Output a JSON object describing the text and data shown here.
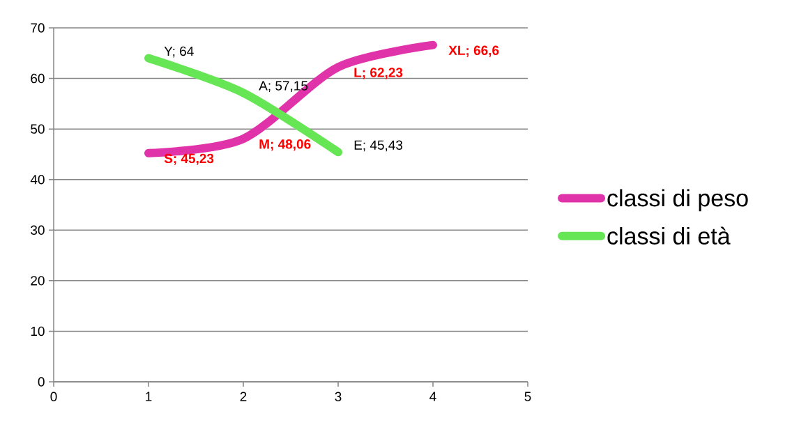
{
  "chart_data": {
    "type": "line",
    "x": [
      1,
      2,
      3,
      4
    ],
    "xlim": [
      0,
      5
    ],
    "xticks": [
      0,
      1,
      2,
      3,
      4,
      5
    ],
    "ylim": [
      0,
      70
    ],
    "yticks": [
      0,
      10,
      20,
      30,
      40,
      50,
      60,
      70
    ],
    "grid": "y",
    "legend": "right",
    "series": [
      {
        "name": "classi di peso",
        "color": "#e033aa",
        "values": [
          45.23,
          48.06,
          62.23,
          66.6
        ],
        "value_labels": [
          "S; 45,23",
          "M; 48,06",
          "L; 62,23",
          "XL; 66,6"
        ]
      },
      {
        "name": "classi di età",
        "color": "#66e655",
        "x": [
          1,
          2,
          3
        ],
        "values": [
          64,
          57.15,
          45.43
        ],
        "value_labels": [
          "Y; 64",
          "A; 57,15",
          "E; 45,43"
        ]
      }
    ]
  }
}
